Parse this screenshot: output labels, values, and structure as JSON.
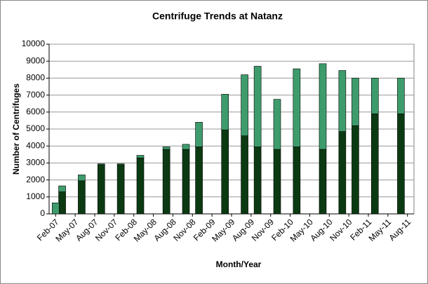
{
  "chart_data": {
    "type": "stacked-bar",
    "title": "Centrifuge Trends at Natanz",
    "x_label": "Month/Year",
    "y_label": "Number of Centrifuges",
    "x": [
      "2007-02",
      "2007-03",
      "2007-06",
      "2007-09",
      "2007-12",
      "2008-03",
      "2008-07",
      "2008-10",
      "2008-12",
      "2009-04",
      "2009-07",
      "2009-09",
      "2009-12",
      "2010-03",
      "2010-07",
      "2010-10",
      "2010-12",
      "2011-03",
      "2011-07"
    ],
    "series": [
      {
        "color": "#0b3a12",
        "values": [
          0,
          1300,
          1950,
          2900,
          2900,
          3300,
          3800,
          3800,
          3950,
          4950,
          4600,
          3950,
          3800,
          3950,
          3800,
          4850,
          5200,
          5900,
          5900
        ]
      },
      {
        "color": "#3e9c6c",
        "values": [
          650,
          350,
          350,
          50,
          50,
          150,
          150,
          300,
          1450,
          2100,
          3600,
          4750,
          2950,
          4600,
          5050,
          3600,
          2800,
          2100,
          2100
        ]
      }
    ],
    "xlim": [
      "2007-01",
      "2011-09"
    ],
    "xticks": [
      {
        "value": "2007-02",
        "label": "Feb-07"
      },
      {
        "value": "2007-05",
        "label": "May-07"
      },
      {
        "value": "2007-08",
        "label": "Aug-07"
      },
      {
        "value": "2007-11",
        "label": "Nov-07"
      },
      {
        "value": "2008-02",
        "label": "Feb-08"
      },
      {
        "value": "2008-05",
        "label": "May-08"
      },
      {
        "value": "2008-08",
        "label": "Aug-08"
      },
      {
        "value": "2008-11",
        "label": "Nov-08"
      },
      {
        "value": "2009-02",
        "label": "Feb-09"
      },
      {
        "value": "2009-05",
        "label": "May-09"
      },
      {
        "value": "2009-08",
        "label": "Aug-09"
      },
      {
        "value": "2009-11",
        "label": "Nov-09"
      },
      {
        "value": "2010-02",
        "label": "Feb-10"
      },
      {
        "value": "2010-05",
        "label": "May-10"
      },
      {
        "value": "2010-08",
        "label": "Aug-10"
      },
      {
        "value": "2010-11",
        "label": "Nov-10"
      },
      {
        "value": "2011-02",
        "label": "Feb-11"
      },
      {
        "value": "2011-05",
        "label": "May-11"
      },
      {
        "value": "2011-08",
        "label": "Aug-11"
      }
    ],
    "ylim": [
      0,
      10000
    ],
    "yticks": [
      0,
      1000,
      2000,
      3000,
      4000,
      5000,
      6000,
      7000,
      8000,
      9000,
      10000
    ],
    "grid": true
  }
}
